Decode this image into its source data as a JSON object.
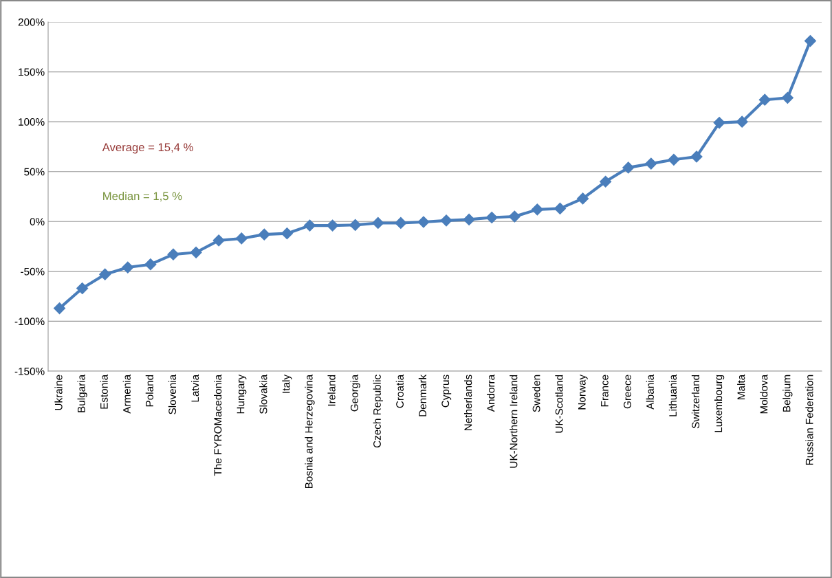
{
  "chart_data": {
    "type": "line",
    "categories": [
      "Ukraine",
      "Bulgaria",
      "Estonia",
      "Armenia",
      "Poland",
      "Slovenia",
      "Latvia",
      "The FYROMacedonia",
      "Hungary",
      "Slovakia",
      "Italy",
      "Bosnia and Herzegovina",
      "Ireland",
      "Georgia",
      "Czech Republic",
      "Croatia",
      "Denmark",
      "Cyprus",
      "Netherlands",
      "Andorra",
      "UK-Northern Ireland",
      "Sweden",
      "UK-Scotland",
      "Norway",
      "France",
      "Greece",
      "Albania",
      "Lithuania",
      "Switzerland",
      "Luxembourg",
      "Malta",
      "Moldova",
      "Belgium",
      "Russian Federation"
    ],
    "series": [
      {
        "color": "#4a7ebb",
        "values": [
          -87,
          -67,
          -53,
          -46,
          -43,
          -33,
          -31,
          -19,
          -17,
          -13,
          -12,
          -4,
          -4,
          -3.5,
          -1.5,
          -1.5,
          -0.5,
          1,
          2,
          4,
          5,
          12,
          13,
          23,
          40,
          54,
          58,
          62,
          65,
          99,
          100,
          122,
          124,
          181
        ]
      }
    ],
    "ylim": [
      -150,
      200
    ],
    "yticks": [
      {
        "value": -150,
        "label": "-150%"
      },
      {
        "value": -100,
        "label": "-100%"
      },
      {
        "value": -50,
        "label": "-50%"
      },
      {
        "value": 0,
        "label": "0%"
      },
      {
        "value": 50,
        "label": "50%"
      },
      {
        "value": 100,
        "label": "100%"
      },
      {
        "value": 150,
        "label": "150%"
      },
      {
        "value": 200,
        "label": "200%"
      }
    ],
    "grid": "y",
    "marker": "diamond",
    "line_style": "solid",
    "legend": false,
    "annotations": [
      "Average = 15,4 %",
      "Median = 1,5 %"
    ]
  }
}
